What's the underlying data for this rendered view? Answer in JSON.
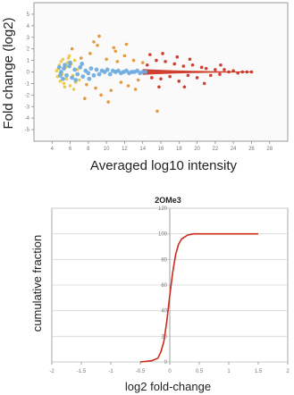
{
  "chart_data": [
    {
      "type": "scatter",
      "title": "",
      "xlabel": "Averaged log10 intensity",
      "ylabel": "Fold change (log2)",
      "xlim": [
        2,
        30
      ],
      "ylim": [
        -6,
        6
      ],
      "grid": false,
      "x_tick_labels": [
        "4",
        "6",
        "8",
        "10",
        "12",
        "14",
        "16",
        "18",
        "20",
        "22",
        "24",
        "26",
        "28"
      ],
      "y_tick_labels": [
        "-5",
        "-4",
        "-3",
        "-2",
        "-1",
        "0",
        "1",
        "2",
        "3",
        "4",
        "5"
      ],
      "colors": {
        "low": "#e8c838",
        "mid": "#e0902c",
        "high": "#cc2a1a",
        "dense_core": "#6aa9de",
        "frame": "#999999"
      },
      "series": [
        {
          "color": "low",
          "points": [
            [
              4.5,
              0.1
            ],
            [
              4.6,
              -0.4
            ],
            [
              4.8,
              0.6
            ],
            [
              4.9,
              -0.8
            ],
            [
              5.0,
              0.9
            ],
            [
              5.1,
              -0.2
            ],
            [
              5.2,
              1.1
            ],
            [
              5.3,
              -1.0
            ],
            [
              5.5,
              0.4
            ],
            [
              5.6,
              -0.6
            ],
            [
              5.8,
              1.2
            ],
            [
              6.0,
              -1.2
            ],
            [
              6.1,
              0.7
            ],
            [
              6.3,
              -0.3
            ],
            [
              6.5,
              1.0
            ],
            [
              6.6,
              -0.9
            ],
            [
              6.8,
              0.2
            ],
            [
              7.0,
              -0.7
            ],
            [
              4.7,
              0.3
            ],
            [
              5.4,
              -1.3
            ],
            [
              5.9,
              1.4
            ],
            [
              6.4,
              -1.5
            ],
            [
              4.9,
              -0.1
            ],
            [
              5.7,
              0.8
            ]
          ]
        },
        {
          "color": "mid",
          "points": [
            [
              7.2,
              1.2
            ],
            [
              7.8,
              -1.1
            ],
            [
              8.2,
              1.6
            ],
            [
              8.8,
              -1.4
            ],
            [
              9.0,
              2.3
            ],
            [
              9.4,
              -2.0
            ],
            [
              10.0,
              1.1
            ],
            [
              10.5,
              -1.6
            ],
            [
              10.8,
              2.1
            ],
            [
              11.2,
              0.9
            ],
            [
              11.6,
              -0.9
            ],
            [
              12.0,
              1.4
            ],
            [
              12.4,
              -1.2
            ],
            [
              13.0,
              1.0
            ],
            [
              13.5,
              -0.7
            ],
            [
              14.0,
              0.8
            ],
            [
              9.2,
              3.1
            ],
            [
              8.6,
              2.6
            ],
            [
              12.2,
              2.4
            ],
            [
              7.6,
              -2.3
            ],
            [
              15.6,
              -3.4
            ],
            [
              6.2,
              2.0
            ],
            [
              10.2,
              -2.6
            ],
            [
              11.0,
              1.8
            ],
            [
              13.2,
              -1.5
            ]
          ]
        },
        {
          "color": "high",
          "points": [
            [
              14.5,
              0.6
            ],
            [
              15.0,
              -0.5
            ],
            [
              15.5,
              1.0
            ],
            [
              16.0,
              -0.6
            ],
            [
              16.5,
              0.9
            ],
            [
              17.0,
              -0.4
            ],
            [
              17.5,
              0.7
            ],
            [
              18.0,
              -0.8
            ],
            [
              18.5,
              0.5
            ],
            [
              19.0,
              -0.3
            ],
            [
              19.5,
              0.6
            ],
            [
              20.0,
              -0.5
            ],
            [
              20.5,
              0.4
            ],
            [
              21.0,
              0.3
            ],
            [
              21.5,
              -0.3
            ],
            [
              22.0,
              0.2
            ],
            [
              22.5,
              -0.2
            ],
            [
              23.0,
              0.2
            ],
            [
              23.5,
              0.0
            ],
            [
              24.0,
              0.1
            ],
            [
              24.5,
              -0.1
            ],
            [
              25.0,
              0.0
            ],
            [
              25.5,
              0.0
            ],
            [
              26.0,
              0.0
            ],
            [
              16.2,
              1.6
            ],
            [
              17.8,
              1.3
            ],
            [
              19.2,
              1.1
            ],
            [
              20.8,
              -1.0
            ],
            [
              18.6,
              -1.3
            ],
            [
              22.6,
              0.6
            ],
            [
              14.8,
              1.5
            ],
            [
              15.8,
              -1.3
            ]
          ]
        },
        {
          "color": "dense_core",
          "points": [
            [
              5.0,
              0.0
            ],
            [
              5.3,
              0.3
            ],
            [
              5.6,
              -0.3
            ],
            [
              5.9,
              0.5
            ],
            [
              6.2,
              -0.5
            ],
            [
              6.5,
              0.2
            ],
            [
              6.8,
              -0.2
            ],
            [
              7.1,
              0.4
            ],
            [
              7.4,
              -0.4
            ],
            [
              7.7,
              0.1
            ],
            [
              8.0,
              -0.1
            ],
            [
              8.3,
              0.3
            ],
            [
              8.6,
              -0.3
            ],
            [
              8.9,
              0.2
            ],
            [
              9.2,
              -0.2
            ],
            [
              9.5,
              0.1
            ],
            [
              9.8,
              0.0
            ],
            [
              10.1,
              0.2
            ],
            [
              10.4,
              -0.2
            ],
            [
              10.7,
              0.1
            ],
            [
              11.0,
              0.0
            ],
            [
              11.3,
              0.1
            ],
            [
              11.6,
              -0.1
            ],
            [
              11.9,
              0.0
            ],
            [
              12.2,
              0.1
            ],
            [
              12.5,
              -0.1
            ],
            [
              12.8,
              0.0
            ],
            [
              13.1,
              0.0
            ],
            [
              13.4,
              0.1
            ],
            [
              13.7,
              -0.1
            ],
            [
              14.0,
              0.0
            ],
            [
              14.3,
              0.0
            ],
            [
              5.2,
              -0.6
            ],
            [
              5.4,
              0.6
            ],
            [
              6.0,
              0.8
            ],
            [
              6.6,
              -0.7
            ],
            [
              7.3,
              0.7
            ],
            [
              8.1,
              -0.6
            ],
            [
              4.8,
              0.4
            ],
            [
              4.9,
              -0.3
            ]
          ]
        }
      ]
    },
    {
      "type": "line",
      "title": "2OMe3",
      "xlabel": "log2 fold-change",
      "ylabel": "cumulative fraction",
      "xlim": [
        -2,
        2
      ],
      "ylim": [
        0,
        120
      ],
      "x_ticks": [
        -2,
        -1.5,
        -1,
        -0.5,
        0,
        0.5,
        1,
        1.5,
        2
      ],
      "y_ticks": [
        0,
        20,
        40,
        60,
        80,
        100,
        120
      ],
      "grid": true,
      "colors": {
        "line": "#cc2a1a",
        "grid": "#d6d6d6",
        "frame": "#aaaaaa"
      },
      "series": [
        {
          "x": [
            -0.5,
            -0.3,
            -0.2,
            -0.15,
            -0.1,
            -0.05,
            0,
            0.05,
            0.1,
            0.15,
            0.2,
            0.3,
            0.4,
            0.6,
            1.0,
            1.5
          ],
          "y": [
            0,
            1,
            3,
            8,
            16,
            32,
            52,
            70,
            84,
            92,
            96,
            99,
            100,
            100,
            100,
            100
          ]
        }
      ]
    }
  ]
}
